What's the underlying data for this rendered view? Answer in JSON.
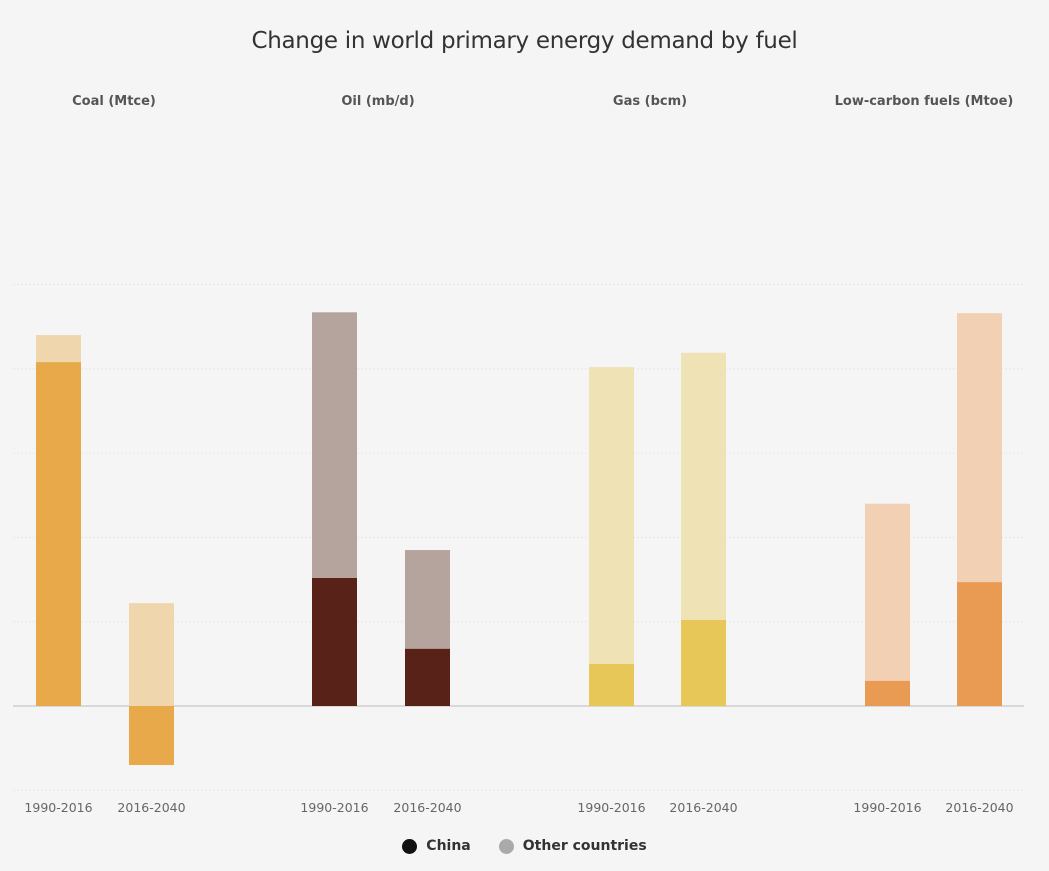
{
  "chart_data": {
    "type": "bar",
    "stacked": true,
    "title": "Change in world primary energy demand by fuel",
    "units_note": "No y-axis labels shown; values expressed in gridline steps (1 unit = 1 gridline interval)",
    "ylim": [
      -1,
      5
    ],
    "grid": true,
    "legend_position": "bottom-center",
    "legend": [
      {
        "name": "China",
        "color": "#111111"
      },
      {
        "name": "Other countries",
        "color": "#aaaaaa"
      }
    ],
    "panels": [
      {
        "title": "Coal (Mtce)",
        "china_color": "#e8a94a",
        "other_color": "#f0d6ad",
        "categories": [
          "1990-2016",
          "2016-2040"
        ],
        "series": [
          {
            "name": "China",
            "values": [
              4.08,
              -0.7
            ]
          },
          {
            "name": "Other countries",
            "values": [
              0.32,
              1.22
            ]
          }
        ]
      },
      {
        "title": "Oil (mb/d)",
        "china_color": "#582218",
        "other_color": "#b5a39d",
        "categories": [
          "1990-2016",
          "2016-2040"
        ],
        "series": [
          {
            "name": "China",
            "values": [
              1.52,
              0.68
            ]
          },
          {
            "name": "Other countries",
            "values": [
              3.15,
              1.17
            ]
          }
        ]
      },
      {
        "title": "Gas (bcm)",
        "china_color": "#e6c757",
        "other_color": "#efe2b5",
        "categories": [
          "1990-2016",
          "2016-2040"
        ],
        "series": [
          {
            "name": "China",
            "values": [
              0.5,
              1.02
            ]
          },
          {
            "name": "Other countries",
            "values": [
              3.52,
              3.17
            ]
          }
        ]
      },
      {
        "title": "Low-carbon fuels (Mtoe)",
        "china_color": "#e99a53",
        "other_color": "#f2d0b4",
        "categories": [
          "1990-2016",
          "2016-2040"
        ],
        "series": [
          {
            "name": "China",
            "values": [
              0.3,
              1.47
            ]
          },
          {
            "name": "Other countries",
            "values": [
              2.1,
              3.19
            ]
          }
        ]
      }
    ]
  }
}
